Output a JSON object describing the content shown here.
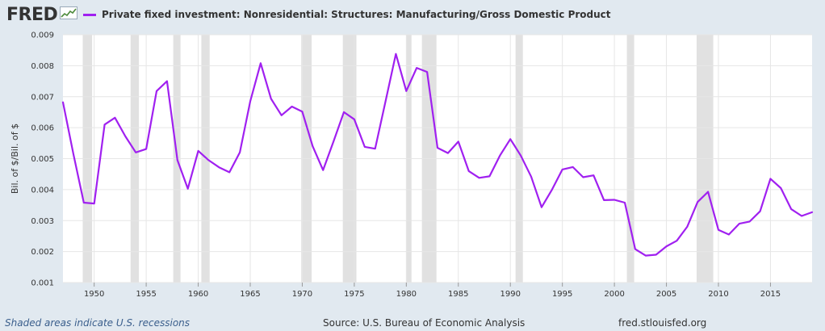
{
  "header": {
    "logo_text": "FRED",
    "logo_icon": "trend-line-icon"
  },
  "legend": {
    "label": "Private fixed investment: Nonresidential: Structures: Manufacturing/Gross Domestic Product",
    "color": "#a020f0"
  },
  "footer": {
    "recession_note": "Shaded areas indicate U.S. recessions",
    "source": "Source: U.S. Bureau of Economic Analysis",
    "site": "fred.stlouisfed.org"
  },
  "colors": {
    "background": "#e1e9f0",
    "plot_background": "#ffffff",
    "recession_shade": "#e1e1e1",
    "series": "#a020f0"
  },
  "chart_data": {
    "type": "line",
    "title": "",
    "xlabel": "",
    "ylabel": "Bil. of $/Bil. of $",
    "xlim": [
      1947,
      2019
    ],
    "ylim": [
      0.001,
      0.009
    ],
    "yticks": [
      "0.001",
      "0.002",
      "0.003",
      "0.004",
      "0.005",
      "0.006",
      "0.007",
      "0.008",
      "0.009"
    ],
    "xticks": [
      "1950",
      "1955",
      "1960",
      "1965",
      "1970",
      "1975",
      "1980",
      "1985",
      "1990",
      "1995",
      "2000",
      "2005",
      "2010",
      "2015"
    ],
    "grid": true,
    "legend_position": "top",
    "recessions": [
      [
        1948.9,
        1949.8
      ],
      [
        1953.5,
        1954.3
      ],
      [
        1957.6,
        1958.3
      ],
      [
        1960.3,
        1961.1
      ],
      [
        1969.9,
        1970.9
      ],
      [
        1973.9,
        1975.2
      ],
      [
        1980.0,
        1980.5
      ],
      [
        1981.5,
        1982.9
      ],
      [
        1990.5,
        1991.2
      ],
      [
        2001.2,
        2001.9
      ],
      [
        2007.9,
        2009.5
      ]
    ],
    "series": [
      {
        "name": "Private fixed investment: Nonresidential: Structures: Manufacturing/Gross Domestic Product",
        "x": [
          1947,
          1948,
          1949,
          1950,
          1951,
          1952,
          1953,
          1954,
          1955,
          1956,
          1957,
          1958,
          1959,
          1960,
          1961,
          1962,
          1963,
          1964,
          1965,
          1966,
          1967,
          1968,
          1969,
          1970,
          1971,
          1972,
          1973,
          1974,
          1975,
          1976,
          1977,
          1978,
          1979,
          1980,
          1981,
          1982,
          1983,
          1984,
          1985,
          1986,
          1987,
          1988,
          1989,
          1990,
          1991,
          1992,
          1993,
          1994,
          1995,
          1996,
          1997,
          1998,
          1999,
          2000,
          2001,
          2002,
          2003,
          2004,
          2005,
          2006,
          2007,
          2008,
          2009,
          2010,
          2011,
          2012,
          2013,
          2014,
          2015,
          2016,
          2017,
          2018,
          2019
        ],
        "values": [
          0.00682,
          0.00515,
          0.00358,
          0.00355,
          0.0061,
          0.00632,
          0.00572,
          0.0052,
          0.00531,
          0.00718,
          0.0075,
          0.00495,
          0.00403,
          0.00525,
          0.00495,
          0.00472,
          0.00456,
          0.0052,
          0.00685,
          0.00808,
          0.00693,
          0.0064,
          0.00668,
          0.00652,
          0.0054,
          0.00463,
          0.00555,
          0.0065,
          0.00627,
          0.00538,
          0.00532,
          0.00685,
          0.00838,
          0.00718,
          0.00793,
          0.0078,
          0.00535,
          0.00518,
          0.00555,
          0.0046,
          0.00438,
          0.00443,
          0.0051,
          0.00563,
          0.0051,
          0.00442,
          0.00343,
          0.004,
          0.00465,
          0.00473,
          0.0044,
          0.00446,
          0.00366,
          0.00367,
          0.00358,
          0.00208,
          0.00187,
          0.0019,
          0.00217,
          0.00235,
          0.0028,
          0.0036,
          0.00393,
          0.0027,
          0.00255,
          0.0029,
          0.00297,
          0.0033,
          0.00435,
          0.00405,
          0.00337,
          0.00315,
          0.00327
        ]
      }
    ]
  }
}
